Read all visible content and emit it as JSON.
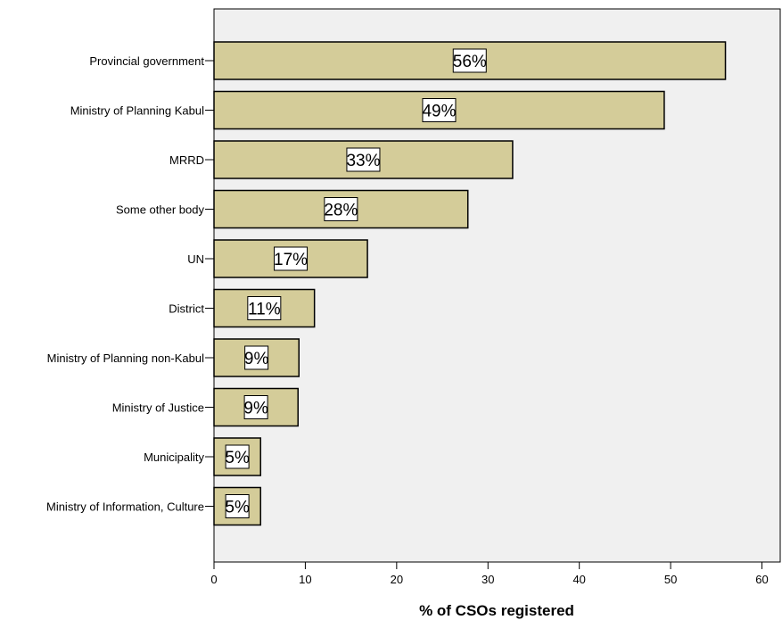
{
  "chart_data": {
    "type": "bar",
    "orientation": "horizontal",
    "categories": [
      "Provincial government",
      "Ministry of Planning Kabul",
      "MRRD",
      "Some other body",
      "UN",
      "District",
      "Ministry of Planning non-Kabul",
      "Ministry of Justice",
      "Municipality",
      "Ministry of Information, Culture"
    ],
    "values": [
      56,
      49.3,
      32.7,
      27.8,
      16.8,
      11,
      9.3,
      9.2,
      5.1,
      5.1
    ],
    "data_labels": [
      "56%",
      "49%",
      "33%",
      "28%",
      "17%",
      "11%",
      "9%",
      "9%",
      "5%",
      "5%"
    ],
    "title": "",
    "xlabel": "% of CSOs registered",
    "ylabel": "",
    "xlim": [
      0,
      62
    ],
    "xticks": [
      "0",
      "10",
      "20",
      "30",
      "40",
      "50",
      "60"
    ],
    "grid": false,
    "legend": "none",
    "colors": {
      "bar_fill": "#d4cc99",
      "bar_stroke": "#000000",
      "plot_background": "#f0f0f0",
      "label_box_fill": "#ffffff"
    }
  }
}
